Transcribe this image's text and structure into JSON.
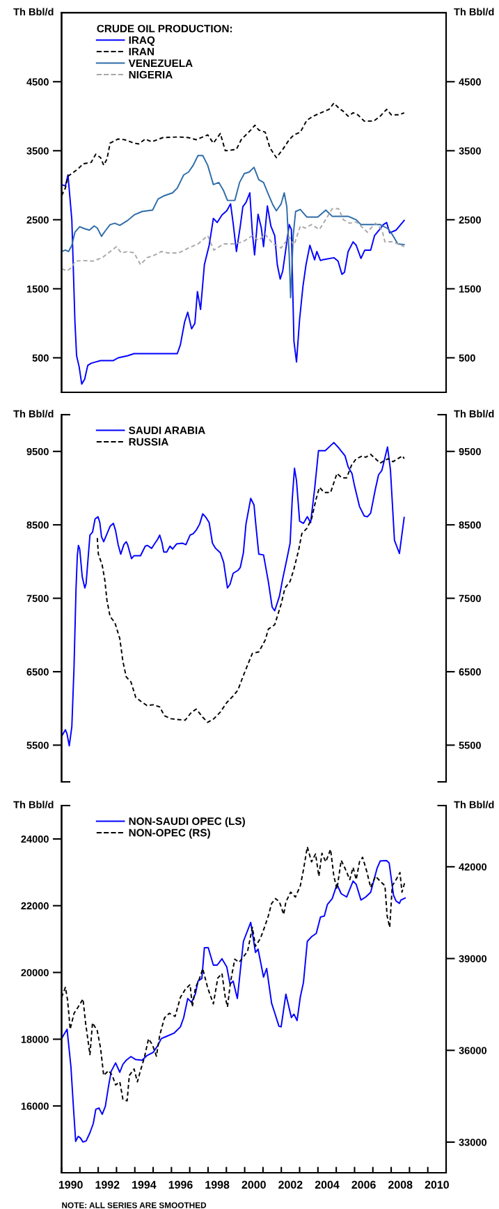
{
  "chart_data": [
    {
      "type": "line",
      "ylabel": "Th Bbl/d",
      "y2label": "Th Bbl/d",
      "legend_title": "CRUDE OIL PRODUCTION:",
      "legend": "top left",
      "tick_labels": "y",
      "xlim": [
        1990,
        2011
      ],
      "ylim": [
        0,
        5500
      ],
      "yticks": [
        500,
        1500,
        2500,
        3500,
        4500
      ],
      "y2lim": [
        0,
        5500
      ],
      "y2ticks": [
        500,
        1500,
        2500,
        3500,
        4500
      ],
      "series": [
        {
          "name": "IRAQ",
          "color": "#0000ff",
          "line_style": "solid",
          "x": [
            1990.0,
            1990.21,
            1990.35,
            1990.56,
            1990.73,
            1990.82,
            1990.96,
            1991.1,
            1991.26,
            1991.43,
            1991.61,
            1991.87,
            1992.13,
            1992.83,
            1993.09,
            1993.61,
            1993.96,
            1995.71,
            1996.32,
            1996.49,
            1996.72,
            1996.89,
            1997.1,
            1997.28,
            1997.42,
            1997.59,
            1997.8,
            1998.06,
            1998.29,
            1998.5,
            1998.76,
            1999.02,
            1999.23,
            1999.37,
            1999.55,
            1999.76,
            1999.9,
            2000.07,
            2000.28,
            2000.42,
            2000.54,
            2000.73,
            2000.91,
            2001.03,
            2001.24,
            2001.43,
            2001.64,
            2001.78,
            2001.94,
            2002.08,
            2002.25,
            2002.43,
            2002.55,
            2002.69,
            2002.83,
            2003.0,
            2003.18,
            2003.35,
            2003.56,
            2003.82,
            2003.94,
            2004.14,
            2004.26,
            2004.87,
            2005.1,
            2005.31,
            2005.45,
            2005.65,
            2005.92,
            2006.09,
            2006.35,
            2006.56,
            2006.88,
            2007.09,
            2007.31,
            2007.57,
            2007.75,
            2007.92,
            2008.27,
            2008.71
          ],
          "values": [
            3010,
            2990,
            3150,
            2500,
            1020,
            530,
            370,
            120,
            190,
            390,
            420,
            440,
            460,
            460,
            500,
            530,
            560,
            560,
            560,
            690,
            1020,
            1160,
            920,
            1000,
            1460,
            1200,
            1850,
            2130,
            2520,
            2460,
            2570,
            2630,
            2730,
            2450,
            2040,
            2410,
            2690,
            2750,
            2890,
            2310,
            1990,
            2580,
            2380,
            2110,
            2700,
            2410,
            2270,
            1850,
            1640,
            1760,
            2080,
            2430,
            2360,
            740,
            440,
            1060,
            1530,
            1850,
            2130,
            1920,
            2040,
            1910,
            1920,
            1950,
            1900,
            1710,
            1740,
            2040,
            2180,
            2130,
            1940,
            2060,
            2060,
            2270,
            2340,
            2430,
            2460,
            2310,
            2350,
            2490
          ]
        },
        {
          "name": "IRAN",
          "color": "#000000",
          "line_style": "dashed",
          "x": [
            1990.0,
            1990.21,
            1990.35,
            1990.56,
            1990.91,
            1991.17,
            1991.61,
            1991.87,
            1992.13,
            1992.3,
            1992.48,
            1992.65,
            1993.09,
            1993.44,
            1993.96,
            1994.22,
            1994.57,
            1994.92,
            1995.53,
            1996.4,
            1996.93,
            1997.36,
            1997.98,
            1998.29,
            1998.67,
            1998.94,
            1999.28,
            1999.55,
            1999.81,
            2000.07,
            2000.33,
            2000.56,
            2000.77,
            2001.12,
            2001.38,
            2001.73,
            2002.08,
            2002.43,
            2002.69,
            2003.04,
            2003.39,
            2003.73,
            2004.17,
            2004.61,
            2004.87,
            2005.13,
            2005.39,
            2005.65,
            2005.92,
            2006.18,
            2006.53,
            2007.05,
            2007.4,
            2007.75,
            2008.01,
            2008.45,
            2008.71
          ],
          "values": [
            2850,
            2960,
            3130,
            3170,
            3240,
            3310,
            3330,
            3450,
            3400,
            3290,
            3380,
            3610,
            3670,
            3660,
            3610,
            3600,
            3670,
            3630,
            3690,
            3700,
            3690,
            3660,
            3730,
            3610,
            3750,
            3500,
            3510,
            3520,
            3660,
            3730,
            3800,
            3870,
            3800,
            3770,
            3540,
            3400,
            3520,
            3660,
            3730,
            3770,
            3940,
            4000,
            4050,
            4100,
            4190,
            4120,
            4070,
            4000,
            4050,
            4020,
            3930,
            3930,
            4000,
            4100,
            4020,
            4020,
            4050
          ]
        },
        {
          "name": "VENEZUELA",
          "color": "#2e6ca8",
          "line_style": "solid",
          "x": [
            1990.0,
            1990.21,
            1990.38,
            1990.56,
            1990.73,
            1990.99,
            1991.26,
            1991.52,
            1991.78,
            1991.95,
            1992.18,
            1992.39,
            1992.65,
            1992.91,
            1993.18,
            1993.61,
            1993.96,
            1994.4,
            1994.97,
            1995.27,
            1995.62,
            1996.06,
            1996.32,
            1996.67,
            1996.93,
            1997.19,
            1997.45,
            1997.71,
            1997.98,
            1998.29,
            1998.59,
            1998.85,
            1999.06,
            1999.46,
            1999.72,
            1999.98,
            2000.24,
            2000.51,
            2000.77,
            2001.03,
            2001.29,
            2001.55,
            2001.73,
            2001.99,
            2002.16,
            2002.3,
            2002.43,
            2002.51,
            2002.65,
            2002.78,
            2003.04,
            2003.39,
            2003.99,
            2004.43,
            2004.78,
            2005.65,
            2006.09,
            2006.35,
            2007.4,
            2007.83,
            2008.1,
            2008.36,
            2008.71
          ],
          "values": [
            2040,
            2060,
            2040,
            2130,
            2320,
            2400,
            2370,
            2350,
            2410,
            2380,
            2260,
            2340,
            2430,
            2450,
            2420,
            2490,
            2570,
            2620,
            2640,
            2800,
            2850,
            2890,
            2960,
            3150,
            3190,
            3290,
            3430,
            3430,
            3290,
            3010,
            3040,
            2920,
            2780,
            2780,
            3040,
            3170,
            3190,
            3260,
            3080,
            3040,
            2870,
            2710,
            2630,
            2730,
            2890,
            2690,
            1990,
            1370,
            2270,
            2620,
            2650,
            2540,
            2540,
            2640,
            2550,
            2550,
            2500,
            2430,
            2430,
            2370,
            2270,
            2150,
            2140
          ]
        },
        {
          "name": "NIGERIA",
          "color": "#a8a8a8",
          "line_style": "dashed",
          "x": [
            1990.0,
            1990.3,
            1990.56,
            1990.73,
            1991.17,
            1991.69,
            1992.22,
            1992.65,
            1993.0,
            1993.26,
            1993.61,
            1993.96,
            1994.31,
            1994.66,
            1995.1,
            1995.45,
            1995.79,
            1996.4,
            1996.93,
            1997.45,
            1997.98,
            1998.32,
            1998.85,
            1999.37,
            1999.9,
            2000.42,
            2000.77,
            2001.12,
            2001.55,
            2001.99,
            2002.43,
            2002.69,
            2003.04,
            2003.3,
            2003.65,
            2004.08,
            2004.35,
            2004.78,
            2005.13,
            2005.39,
            2005.74,
            2006.09,
            2006.35,
            2006.7,
            2007.14,
            2007.49,
            2007.66,
            2008.1,
            2008.71
          ],
          "values": [
            1790,
            1760,
            1810,
            1900,
            1910,
            1900,
            1950,
            2040,
            2110,
            2020,
            2040,
            2020,
            1850,
            1950,
            1990,
            2040,
            2020,
            2020,
            2090,
            2150,
            2270,
            2060,
            2150,
            2150,
            2180,
            2270,
            2200,
            2290,
            2150,
            2090,
            2250,
            2130,
            2410,
            2380,
            2430,
            2360,
            2470,
            2660,
            2660,
            2500,
            2450,
            2470,
            2410,
            2320,
            2450,
            2360,
            2180,
            2180,
            2110
          ]
        }
      ]
    },
    {
      "type": "line",
      "ylabel": "Th Bbl/d",
      "y2label": "Th Bbl/d",
      "legend": "top left",
      "tick_labels": "y",
      "xlim": [
        1990,
        2011
      ],
      "ylim": [
        5000,
        10000
      ],
      "yticks": [
        {
          "value": 5000,
          "label": null
        },
        5500,
        6500,
        7500,
        8500,
        9500,
        {
          "value": 10000,
          "label": null
        }
      ],
      "y2lim": [
        5000,
        10000
      ],
      "y2ticks": [
        {
          "value": 5000,
          "label": null
        },
        5500,
        6500,
        7500,
        8500,
        9500,
        {
          "value": 10000,
          "label": null
        }
      ],
      "series": [
        {
          "name": "SAUDI ARABIA",
          "color": "#0000ff",
          "line_style": "solid",
          "x": [
            1990.0,
            1990.21,
            1990.3,
            1990.42,
            1990.56,
            1990.68,
            1990.79,
            1990.86,
            1990.92,
            1990.99,
            1991.13,
            1991.27,
            1991.34,
            1991.45,
            1991.55,
            1991.69,
            1991.83,
            1991.99,
            1992.09,
            1992.18,
            1992.3,
            1992.65,
            1992.83,
            1992.95,
            1993.09,
            1993.23,
            1993.4,
            1993.53,
            1993.61,
            1993.82,
            1993.96,
            1994.31,
            1994.57,
            1994.69,
            1994.92,
            1995.1,
            1995.24,
            1995.36,
            1995.48,
            1995.58,
            1995.74,
            1995.92,
            1996.06,
            1996.28,
            1996.61,
            1996.79,
            1997.02,
            1997.19,
            1997.36,
            1997.54,
            1997.71,
            1997.89,
            1998.06,
            1998.24,
            1998.41,
            1998.67,
            1998.85,
            1999.06,
            1999.2,
            1999.37,
            1999.63,
            1999.76,
            1999.93,
            2000.07,
            2000.33,
            2000.51,
            2000.59,
            2000.77,
            2001.03,
            2001.29,
            2001.5,
            2001.64,
            2001.9,
            2002.08,
            2002.3,
            2002.48,
            2002.6,
            2002.72,
            2002.83,
            2003.0,
            2003.21,
            2003.42,
            2003.6,
            2003.82,
            2004.03,
            2004.4,
            2004.87,
            2005.13,
            2005.48,
            2005.65,
            2005.86,
            2006.0,
            2006.27,
            2006.53,
            2006.7,
            2006.88,
            2007.14,
            2007.31,
            2007.49,
            2007.8,
            2007.96,
            2008.18,
            2008.45,
            2008.71
          ],
          "values": [
            5620,
            5710,
            5650,
            5490,
            5750,
            6560,
            7640,
            8080,
            8220,
            8170,
            7790,
            7640,
            7700,
            8050,
            8360,
            8400,
            8580,
            8610,
            8530,
            8340,
            8270,
            8480,
            8520,
            8420,
            8230,
            8100,
            8230,
            8270,
            8230,
            8040,
            8080,
            8080,
            8210,
            8220,
            8180,
            8250,
            8300,
            8360,
            8260,
            8130,
            8130,
            8210,
            8170,
            8240,
            8250,
            8230,
            8360,
            8380,
            8430,
            8510,
            8650,
            8600,
            8530,
            8250,
            8180,
            8120,
            7990,
            7640,
            7690,
            7840,
            7880,
            7920,
            8120,
            8510,
            8860,
            8770,
            8550,
            8100,
            8090,
            7730,
            7380,
            7330,
            7530,
            7770,
            8030,
            8250,
            8860,
            9270,
            9100,
            8550,
            8520,
            8610,
            8530,
            8990,
            9510,
            9510,
            9620,
            9550,
            9440,
            9290,
            9200,
            9030,
            8750,
            8620,
            8610,
            8660,
            8990,
            9180,
            9240,
            9560,
            9250,
            8290,
            8110,
            8600
          ]
        },
        {
          "name": "RUSSIA",
          "color": "#000000",
          "line_style": "dashed",
          "x": [
            1991.95,
            1992.01,
            1992.22,
            1992.36,
            1992.48,
            1992.65,
            1992.91,
            1993.18,
            1993.35,
            1993.53,
            1993.79,
            1994.05,
            1994.31,
            1994.66,
            1995.01,
            1995.36,
            1995.62,
            1995.97,
            1996.32,
            1996.75,
            1997.1,
            1997.36,
            1997.71,
            1997.98,
            1998.32,
            1998.67,
            1999.02,
            1999.37,
            1999.63,
            1999.9,
            2000.24,
            2000.42,
            2000.77,
            2001.12,
            2001.29,
            2001.64,
            2001.99,
            2002.2,
            2002.48,
            2002.69,
            2002.95,
            2003.12,
            2003.39,
            2003.65,
            2003.91,
            2004.08,
            2004.35,
            2004.69,
            2005.04,
            2005.31,
            2005.57,
            2005.83,
            2006.09,
            2006.44,
            2006.61,
            2006.88,
            2007.14,
            2007.4,
            2007.66,
            2007.84,
            2008.1,
            2008.36,
            2008.62,
            2008.71
          ],
          "values": [
            8320,
            8100,
            7950,
            7750,
            7470,
            7250,
            7170,
            6950,
            6640,
            6430,
            6360,
            6150,
            6100,
            6040,
            6050,
            6020,
            5900,
            5860,
            5850,
            5840,
            5950,
            5990,
            5880,
            5810,
            5860,
            5950,
            6080,
            6170,
            6250,
            6430,
            6640,
            6750,
            6770,
            6930,
            7080,
            7140,
            7420,
            7640,
            7730,
            7900,
            8160,
            8380,
            8450,
            8580,
            8860,
            9010,
            8940,
            8940,
            9200,
            9140,
            9140,
            9310,
            9400,
            9440,
            9420,
            9460,
            9400,
            9340,
            9380,
            9400,
            9360,
            9400,
            9440,
            9400
          ]
        }
      ]
    },
    {
      "type": "line",
      "ylabel": "Th Bbl/d",
      "y2label": "Th Bbl/d",
      "legend": "top left",
      "xlim": [
        1990,
        2011
      ],
      "xticks": [
        {
          "value": 1990,
          "label": null
        },
        {
          "value": 1991,
          "label": null
        },
        {
          "value": 1992,
          "label": null
        },
        {
          "value": 1993,
          "label": null
        },
        {
          "value": 1994,
          "label": null
        },
        {
          "value": 1995,
          "label": null
        },
        {
          "value": 1996,
          "label": null
        },
        {
          "value": 1997,
          "label": null
        },
        {
          "value": 1998,
          "label": null
        },
        {
          "value": 1999,
          "label": null
        },
        {
          "value": 2000,
          "label": null
        },
        {
          "value": 2001,
          "label": null
        },
        {
          "value": 2002,
          "label": null
        },
        {
          "value": 2003,
          "label": null
        },
        {
          "value": 2004,
          "label": null
        },
        {
          "value": 2005,
          "label": null
        },
        {
          "value": 2006,
          "label": null
        },
        {
          "value": 2007,
          "label": null
        },
        {
          "value": 2008,
          "label": null
        },
        {
          "value": 2009,
          "label": null
        },
        {
          "value": 2010,
          "label": null
        },
        {
          "value": 2011,
          "label": null
        },
        {
          "value": 1990.5,
          "label": "1990"
        },
        {
          "value": 1992.5,
          "label": "1992"
        },
        {
          "value": 1994.5,
          "label": "1994"
        },
        {
          "value": 1996.5,
          "label": "1996"
        },
        {
          "value": 1998.5,
          "label": "1998"
        },
        {
          "value": 2000.5,
          "label": "2000"
        },
        {
          "value": 2002.5,
          "label": "2002"
        },
        {
          "value": 2004.5,
          "label": "2004"
        },
        {
          "value": 2006.5,
          "label": "2006"
        },
        {
          "value": 2008.5,
          "label": "2008"
        },
        {
          "value": 2010.5,
          "label": "2010"
        }
      ],
      "ylim": [
        14000,
        25000
      ],
      "yticks": [
        16000,
        18000,
        20000,
        22000,
        24000,
        {
          "value": 25000,
          "label": null
        }
      ],
      "y2lim": [
        32000,
        44000
      ],
      "y2ticks": [
        33000,
        36000,
        39000,
        42000,
        {
          "value": 44000,
          "label": null
        }
      ],
      "annotations": [
        "NOTE: ALL SERIES ARE SMOOTHED"
      ],
      "series": [
        {
          "name": "NON-SAUDI OPEC (LS)",
          "color": "#0000ff",
          "line_style": "solid",
          "x": [
            1990.0,
            1990.12,
            1990.3,
            1990.51,
            1990.65,
            1990.77,
            1990.91,
            1991.03,
            1991.17,
            1991.34,
            1991.55,
            1991.73,
            1991.87,
            1992.04,
            1992.22,
            1992.39,
            1992.57,
            1992.71,
            1992.95,
            1993.18,
            1993.35,
            1993.53,
            1993.79,
            1994.05,
            1994.4,
            1994.66,
            1995.01,
            1995.24,
            1995.45,
            1995.71,
            1996.14,
            1996.49,
            1996.67,
            1996.89,
            1997.1,
            1997.31,
            1997.45,
            1997.66,
            1997.8,
            1998.01,
            1998.29,
            1998.5,
            1998.76,
            1999.02,
            1999.2,
            1999.37,
            1999.6,
            1999.93,
            2000.33,
            2000.59,
            2000.73,
            2001.03,
            2001.2,
            2001.47,
            2001.64,
            2001.87,
            2001.99,
            2002.25,
            2002.55,
            2002.69,
            2002.86,
            2003.04,
            2003.21,
            2003.42,
            2003.65,
            2003.91,
            2004.14,
            2004.35,
            2004.52,
            2004.78,
            2005.04,
            2005.27,
            2005.57,
            2005.92,
            2006.09,
            2006.35,
            2006.61,
            2006.88,
            2007.23,
            2007.4,
            2007.75,
            2007.89,
            2008.13,
            2008.27,
            2008.45,
            2008.53,
            2008.76
          ],
          "values": [
            18020,
            18130,
            18300,
            17180,
            15940,
            14940,
            15090,
            15040,
            14920,
            14950,
            15200,
            15470,
            15900,
            15940,
            15750,
            15990,
            16610,
            17040,
            17290,
            17010,
            17250,
            17370,
            17480,
            17390,
            17370,
            17510,
            17610,
            17800,
            18020,
            18080,
            18180,
            18370,
            18650,
            19220,
            19100,
            19360,
            19740,
            19820,
            20740,
            20740,
            20220,
            20220,
            20410,
            20170,
            19650,
            19740,
            19220,
            20930,
            21500,
            20600,
            20700,
            19860,
            20120,
            19080,
            18790,
            18390,
            18370,
            19350,
            18650,
            18750,
            18560,
            19270,
            19700,
            20930,
            21070,
            21170,
            21660,
            21690,
            22040,
            22210,
            22640,
            22360,
            22260,
            22740,
            22640,
            22170,
            22260,
            22400,
            23120,
            23340,
            23350,
            23280,
            22310,
            22140,
            22070,
            22170,
            22230
          ]
        },
        {
          "name": "NON-OPEC (RS)",
          "color": "#000000",
          "line_style": "dashed",
          "axis": "y2",
          "x": [
            1990.0,
            1990.21,
            1990.33,
            1990.47,
            1990.68,
            1990.91,
            1991.17,
            1991.31,
            1991.55,
            1991.69,
            1991.95,
            1992.13,
            1992.3,
            1992.57,
            1992.77,
            1992.95,
            1993.18,
            1993.35,
            1993.58,
            1993.7,
            1993.96,
            1994.14,
            1994.31,
            1994.52,
            1994.75,
            1994.97,
            1995.18,
            1995.36,
            1995.62,
            1995.88,
            1996.2,
            1996.49,
            1996.75,
            1997.02,
            1997.14,
            1997.31,
            1997.54,
            1997.71,
            1997.98,
            1998.29,
            1998.53,
            1998.76,
            1998.94,
            1999.06,
            1999.23,
            1999.46,
            1999.69,
            1999.9,
            2000.16,
            2000.42,
            2000.59,
            2000.86,
            2001.08,
            2001.29,
            2001.47,
            2001.68,
            2001.9,
            2002.13,
            2002.25,
            2002.51,
            2002.77,
            2003.04,
            2003.21,
            2003.42,
            2003.65,
            2003.87,
            2004.05,
            2004.22,
            2004.43,
            2004.69,
            2004.87,
            2005.04,
            2005.27,
            2005.48,
            2005.74,
            2005.92,
            2006.09,
            2006.27,
            2006.44,
            2006.67,
            2006.88,
            2007.14,
            2007.4,
            2007.66,
            2007.78,
            2007.92,
            2008.06,
            2008.27,
            2008.48,
            2008.59,
            2008.76
          ],
          "values": [
            37730,
            38060,
            37630,
            36690,
            37210,
            37420,
            37680,
            36900,
            35860,
            36900,
            36640,
            36070,
            35180,
            35340,
            35180,
            34870,
            34970,
            34400,
            34350,
            35180,
            35390,
            34970,
            35340,
            35760,
            36380,
            36170,
            35810,
            36490,
            37060,
            37210,
            37110,
            37730,
            37990,
            38150,
            37420,
            38040,
            38360,
            38670,
            38040,
            37520,
            38360,
            38510,
            37730,
            37420,
            38250,
            38980,
            38880,
            39030,
            39240,
            40020,
            39400,
            39660,
            40020,
            40390,
            40800,
            40960,
            40850,
            40440,
            40850,
            41170,
            41010,
            41380,
            41900,
            42650,
            42160,
            42420,
            41690,
            42440,
            42160,
            42570,
            41690,
            41270,
            42210,
            41950,
            41580,
            41980,
            41580,
            42160,
            42310,
            41840,
            41320,
            41690,
            41530,
            41380,
            40390,
            40020,
            41380,
            41580,
            41810,
            41170,
            41530
          ]
        }
      ]
    }
  ]
}
